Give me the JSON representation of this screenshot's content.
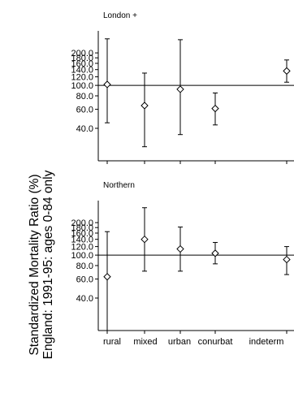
{
  "chart_data": {
    "type": "scatter",
    "ylabel_lines": [
      "Standardized Mortality Ratio (%)",
      "England: 1991-95: ages 0-84 only"
    ],
    "categories": [
      "rural",
      "mixed",
      "urban",
      "conurbat",
      "indeterm"
    ],
    "y_scale": "log",
    "ylim": [
      20,
      320
    ],
    "yticks": [
      "40.0",
      "60.0",
      "80.0",
      "100.0",
      "120.0",
      "140.0",
      "160.0",
      "180.0",
      "200.0"
    ],
    "ytick_values": [
      40,
      60,
      80,
      100,
      120,
      140,
      160,
      180,
      200
    ],
    "reference_line": 100,
    "panels": [
      {
        "title": "London +",
        "points": [
          {
            "category": "rural",
            "value": 102,
            "low": 45,
            "high": 270
          },
          {
            "category": "mixed",
            "value": 65,
            "low": 27,
            "high": 130
          },
          {
            "category": "urban",
            "value": 92,
            "low": 35,
            "high": 265
          },
          {
            "category": "conurbat",
            "value": 61,
            "low": 43,
            "high": 85
          },
          {
            "category": "indeterm",
            "value": 136,
            "low": 107,
            "high": 172
          }
        ]
      },
      {
        "title": "Northern",
        "points": [
          {
            "category": "rural",
            "value": 63,
            "low": 20,
            "high": 165
          },
          {
            "category": "mixed",
            "value": 140,
            "low": 71,
            "high": 275
          },
          {
            "category": "urban",
            "value": 114,
            "low": 71,
            "high": 182
          },
          {
            "category": "conurbat",
            "value": 104,
            "low": 83,
            "high": 131
          },
          {
            "category": "indeterm",
            "value": 91,
            "low": 66,
            "high": 120
          }
        ]
      }
    ]
  }
}
